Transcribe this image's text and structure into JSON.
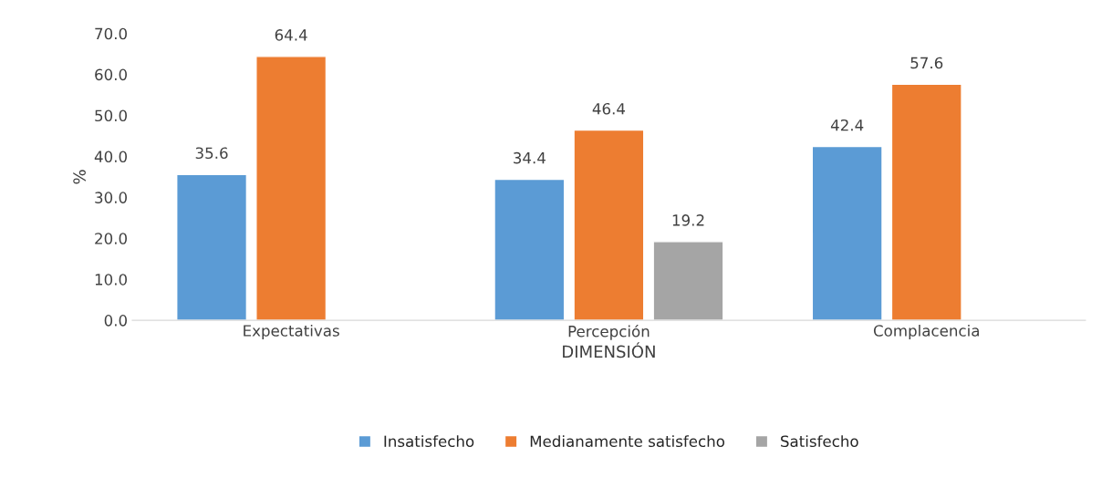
{
  "chart_data": {
    "type": "bar",
    "xlabel": "DIMENSIÓN",
    "ylabel": "%",
    "categories": [
      "Expectativas",
      "Percepción",
      "Complacencia"
    ],
    "series": [
      {
        "name": "Insatisfecho",
        "color": "#5b9bd5",
        "values": [
          35.6,
          34.4,
          42.4
        ]
      },
      {
        "name": "Medianamente satisfecho",
        "color": "#ed7d31",
        "values": [
          64.4,
          46.4,
          57.6
        ]
      },
      {
        "name": "Satisfecho",
        "color": "#a5a5a5",
        "values": [
          null,
          19.2,
          null
        ]
      }
    ],
    "ylim": [
      0,
      70
    ],
    "yticks": [
      {
        "value": 0,
        "label": "0.0"
      },
      {
        "value": 10,
        "label": "10.0"
      },
      {
        "value": 20,
        "label": "20.0"
      },
      {
        "value": 30,
        "label": "30.0"
      },
      {
        "value": 40,
        "label": "40.0"
      },
      {
        "value": 50,
        "label": "50.0"
      },
      {
        "value": 60,
        "label": "60.0"
      },
      {
        "value": 70,
        "label": "70.0"
      }
    ],
    "data_labels": true,
    "grid": false,
    "legend": "bottom"
  }
}
